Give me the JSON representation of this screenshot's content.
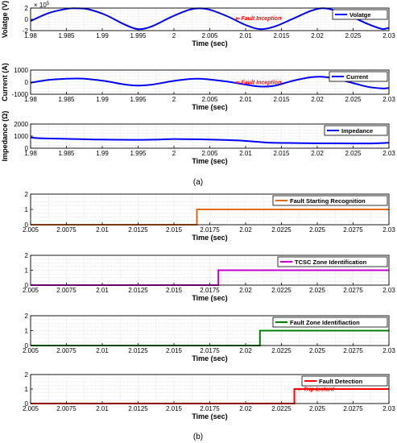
{
  "figure": {
    "label_a": "(a)",
    "label_b": "(b)",
    "exponent_label": "× 10",
    "exponent_power": "5"
  },
  "colors": {
    "blue": "#0000ff",
    "orange": "#e06a1a",
    "magenta": "#c000c8",
    "green": "#008000",
    "red": "#ff0000",
    "annotation": "#ff0000",
    "grid": "#c8c8c8"
  },
  "chart_data": [
    {
      "id": "voltage",
      "type": "line",
      "xlabel": "Time (sec)",
      "ylabel": "Volatge (V)",
      "xlim": [
        1.98,
        2.03
      ],
      "ylim": [
        -2,
        2
      ],
      "y_scale_label": "× 10^5",
      "xticks": [
        "1.98",
        "1.985",
        "1.99",
        "1.995",
        "2",
        "2.005",
        "2.01",
        "2.015",
        "2.02",
        "2.025",
        "2.03"
      ],
      "yticks": [
        "-2",
        "0",
        "2"
      ],
      "grid": true,
      "legend_position": "top-right",
      "annotation": {
        "text": "Fault Inception",
        "x": 2.0085,
        "y": 0.2
      },
      "series": [
        {
          "name": "Volatge",
          "color": "#0000ff",
          "x": [
            1.98,
            1.9825,
            1.985,
            1.9865,
            1.988,
            1.9905,
            1.993,
            1.995,
            1.997,
            1.9995,
            2.002,
            2.0035,
            2.005,
            2.0075,
            2.01,
            2.012,
            2.014,
            2.0165,
            2.019,
            2.0205,
            2.022,
            2.0245,
            2.027,
            2.029,
            2.03
          ],
          "y": [
            -0.3,
            1.1,
            1.85,
            1.95,
            1.8,
            0.75,
            -0.85,
            -1.75,
            -1.2,
            0.35,
            1.65,
            1.95,
            1.7,
            0.5,
            -1.0,
            -1.75,
            -1.3,
            0.05,
            1.45,
            1.95,
            1.75,
            0.65,
            -0.8,
            -1.7,
            -1.5
          ]
        }
      ]
    },
    {
      "id": "current",
      "type": "line",
      "xlabel": "Time (sec)",
      "ylabel": "Current (A)",
      "xlim": [
        1.98,
        2.03
      ],
      "ylim": [
        -1000,
        1000
      ],
      "xticks": [
        "1.98",
        "1.985",
        "1.99",
        "1.995",
        "2",
        "2.005",
        "2.01",
        "2.015",
        "2.02",
        "2.025",
        "2.03"
      ],
      "yticks": [
        "-1000",
        "0",
        "1000"
      ],
      "grid": true,
      "legend_position": "top-right",
      "annotation": {
        "text": "Fault Inception",
        "x": 2.0085,
        "y": 0
      },
      "series": [
        {
          "name": "Current",
          "color": "#0000ff",
          "x": [
            1.98,
            1.9825,
            1.985,
            1.9865,
            1.988,
            1.9905,
            1.993,
            1.995,
            1.997,
            1.9995,
            2.002,
            2.0035,
            2.005,
            2.0075,
            2.01,
            2.012,
            2.014,
            2.0165,
            2.019,
            2.0205,
            2.022,
            2.0245,
            2.027,
            2.029,
            2.03
          ],
          "y": [
            -50,
            180,
            280,
            300,
            260,
            80,
            -180,
            -280,
            -200,
            60,
            250,
            280,
            220,
            40,
            -200,
            -360,
            -300,
            100,
            400,
            450,
            350,
            0,
            -380,
            -520,
            -480
          ]
        }
      ]
    },
    {
      "id": "impedance",
      "type": "line",
      "xlabel": "Time (sec)",
      "ylabel": "Impedance (Ω)",
      "xlim": [
        1.98,
        2.03
      ],
      "ylim": [
        0,
        2000
      ],
      "xticks": [
        "1.98",
        "1.985",
        "1.99",
        "1.995",
        "2",
        "2.005",
        "2.01",
        "2.015",
        "2.02",
        "2.025",
        "2.03"
      ],
      "yticks": [
        "0",
        "1000",
        "2000"
      ],
      "grid": true,
      "legend_position": "top-right",
      "series": [
        {
          "name": "Impedance",
          "color": "#0000ff",
          "x": [
            1.98,
            1.981,
            1.983,
            1.986,
            1.989,
            1.992,
            1.995,
            1.998,
            2.0,
            2.003,
            2.006,
            2.009,
            2.011,
            2.013,
            2.016,
            2.019,
            2.022,
            2.025,
            2.028,
            2.03
          ],
          "y": [
            900,
            830,
            800,
            760,
            720,
            700,
            690,
            720,
            760,
            740,
            700,
            640,
            560,
            470,
            430,
            410,
            400,
            390,
            400,
            450
          ]
        }
      ]
    },
    {
      "id": "fault-starting-recognition",
      "type": "line",
      "xlabel": "Time (sec)",
      "ylabel": "",
      "xlim": [
        2.005,
        2.03
      ],
      "ylim": [
        0,
        2
      ],
      "xticks": [
        "2.005",
        "2.0075",
        "2.01",
        "2.0125",
        "2.015",
        "2.0175",
        "2.02",
        "2.0225",
        "2.025",
        "2.0275",
        "2.03"
      ],
      "yticks": [
        "0",
        "1",
        "2"
      ],
      "grid": true,
      "legend_position": "top-right",
      "series": [
        {
          "name": "Fault Starting Recognition",
          "color": "#e06a1a",
          "step_x": 2.0166
        }
      ]
    },
    {
      "id": "tcsc-zone-identification",
      "type": "line",
      "xlabel": "Time (sec)",
      "ylabel": "",
      "xlim": [
        2.005,
        2.03
      ],
      "ylim": [
        0,
        2
      ],
      "xticks": [
        "2.005",
        "2.0075",
        "2.01",
        "2.0125",
        "2.015",
        "2.0175",
        "2.02",
        "2.0225",
        "2.025",
        "2.0275",
        "2.03"
      ],
      "yticks": [
        "0",
        "1",
        "2"
      ],
      "grid": true,
      "legend_position": "top-right",
      "series": [
        {
          "name": "TCSC Zone Identification",
          "color": "#c000c8",
          "step_x": 2.0181
        }
      ]
    },
    {
      "id": "fault-zone-identification",
      "type": "line",
      "xlabel": "Time (sec)",
      "ylabel": "",
      "xlim": [
        2.005,
        2.03
      ],
      "ylim": [
        0,
        2
      ],
      "xticks": [
        "2.005",
        "2.0075",
        "2.01",
        "2.0125",
        "2.015",
        "2.0175",
        "2.02",
        "2.0225",
        "2.025",
        "2.0275",
        "2.03"
      ],
      "yticks": [
        "0",
        "1",
        "2"
      ],
      "grid": true,
      "legend_position": "top-right",
      "series": [
        {
          "name": "Fault Zone Identifiaction",
          "color": "#008000",
          "step_x": 2.021
        }
      ]
    },
    {
      "id": "fault-detection",
      "type": "line",
      "xlabel": "Time (sec)",
      "ylabel": "",
      "xlim": [
        2.005,
        2.03
      ],
      "ylim": [
        0,
        2
      ],
      "xticks": [
        "2.005",
        "2.0075",
        "2.01",
        "2.0125",
        "2.015",
        "2.0175",
        "2.02",
        "2.0225",
        "2.025",
        "2.0275",
        "2.03"
      ],
      "yticks": [
        "0",
        "1",
        "2"
      ],
      "grid": true,
      "legend_position": "top-right",
      "annotation": {
        "text": "Trip Instant",
        "x": 2.0236,
        "y": 1
      },
      "series": [
        {
          "name": "Fault Detection",
          "color": "#ff0000",
          "step_x": 2.0234
        }
      ]
    }
  ]
}
